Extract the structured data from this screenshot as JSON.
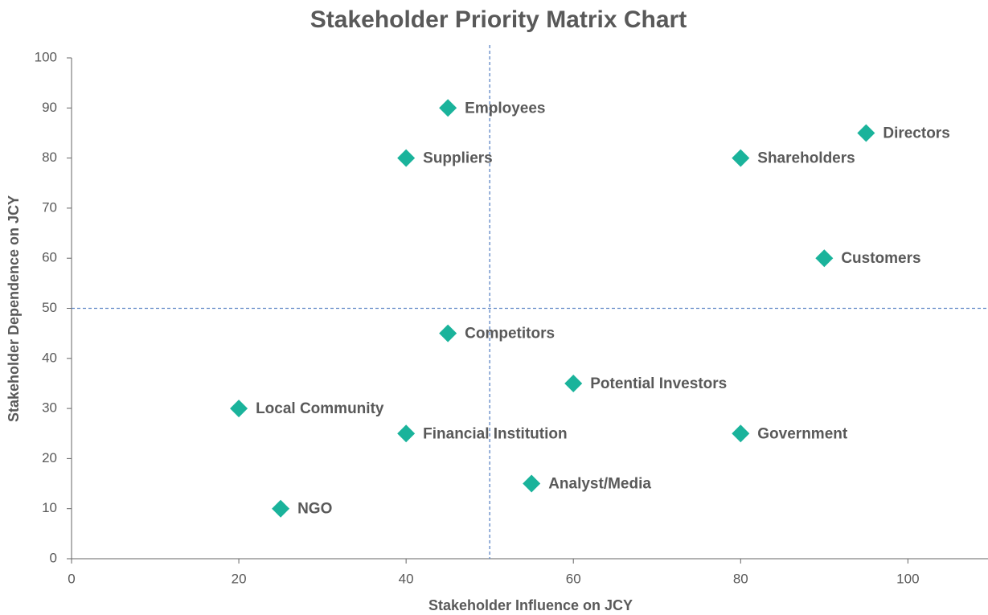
{
  "chart_data": {
    "type": "scatter",
    "title": "Stakeholder Priority Matrix Chart",
    "x_label": "Stakeholder Influence on JCY",
    "y_label": "Stakeholder Dependence on JCY",
    "labels": [
      "Employees",
      "Suppliers",
      "Directors",
      "Shareholders",
      "Customers",
      "Competitors",
      "Potential Investors",
      "Local Community",
      "Financial Institution",
      "Government",
      "Analyst/Media",
      "NGO"
    ],
    "x": [
      45,
      40,
      95,
      80,
      90,
      45,
      60,
      20,
      40,
      80,
      55,
      25
    ],
    "values": [
      90,
      80,
      85,
      80,
      60,
      45,
      35,
      30,
      25,
      25,
      15,
      10
    ],
    "color": "#1ab39b",
    "xlim": [
      0,
      109
    ],
    "xticks": [
      0,
      20,
      40,
      60,
      80,
      100
    ],
    "ylim": [
      0,
      100
    ],
    "yticks": [
      0,
      10,
      20,
      30,
      40,
      50,
      60,
      70,
      80,
      90,
      100
    ],
    "reference_lines": {
      "x": 50,
      "y": 50
    },
    "reference_color": "#5b84c4",
    "grid": false
  }
}
